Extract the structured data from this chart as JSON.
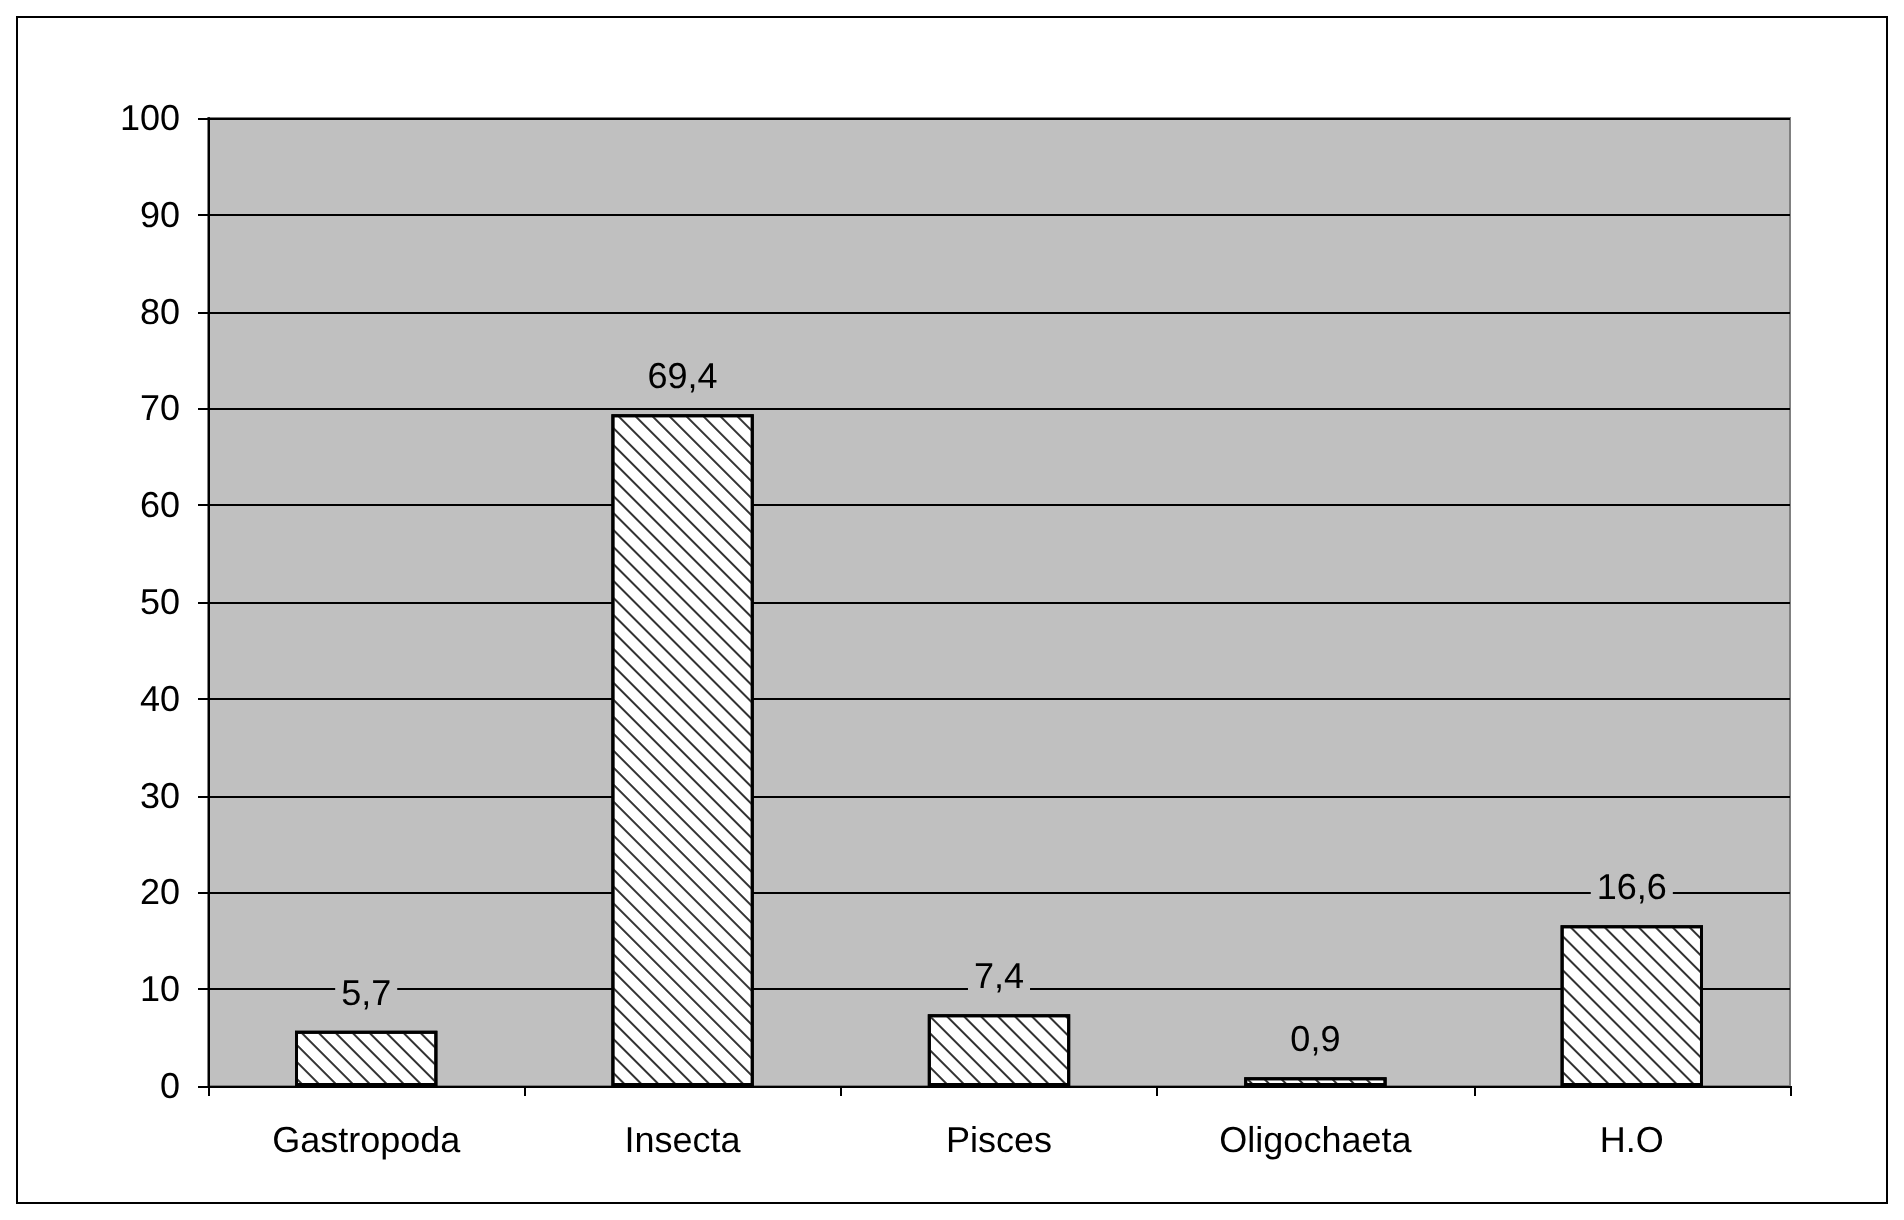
{
  "chart_data": {
    "type": "bar",
    "categories": [
      "Gastropoda",
      "Insecta",
      "Pisces",
      "Oligochaeta",
      "H.O"
    ],
    "values": [
      5.7,
      69.4,
      7.4,
      0.9,
      16.6
    ],
    "value_labels": [
      "5,7",
      "69,4",
      "7,4",
      "0,9",
      "16,6"
    ],
    "color": "#ffffff",
    "ylim": [
      0,
      100
    ],
    "yticks": [
      0,
      10,
      20,
      30,
      40,
      50,
      60,
      70,
      80,
      90,
      100
    ],
    "grid": "y"
  }
}
